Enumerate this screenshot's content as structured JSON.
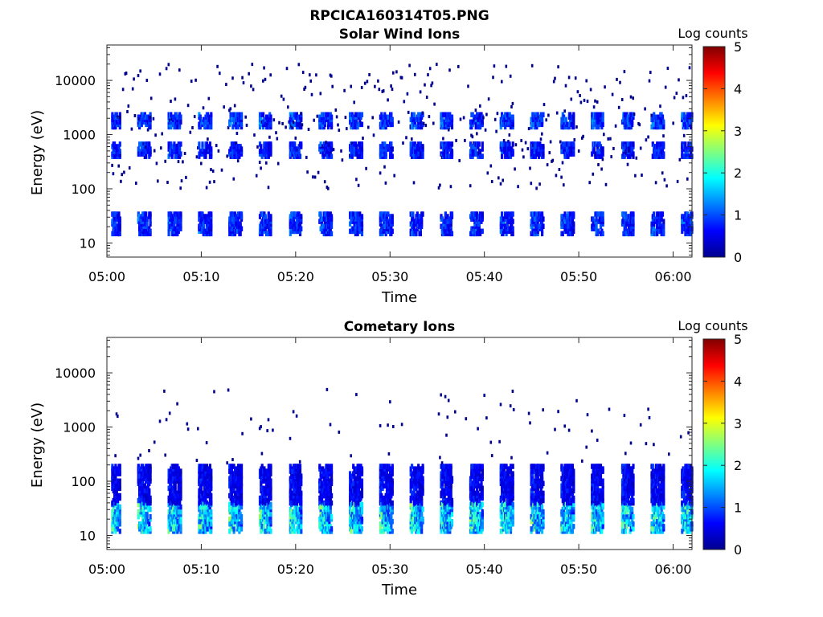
{
  "figure": {
    "filename": "RPCICA160314T05.PNG"
  },
  "colorbar_ticks": [
    "0",
    "1",
    "2",
    "3",
    "4",
    "5"
  ],
  "colors": {
    "colormap": [
      "#00008f",
      "#0000ff",
      "#0080ff",
      "#00ffff",
      "#80ff80",
      "#ffff00",
      "#ff8000",
      "#ff0000",
      "#800000"
    ]
  },
  "chart_data": [
    {
      "type": "heatmap",
      "title": "Solar Wind Ions",
      "xlabel": "Time",
      "ylabel": "Energy (eV)",
      "colorbar_label": "Log counts",
      "clim": [
        0,
        5
      ],
      "yscale": "log",
      "ylim": [
        5.5,
        45000
      ],
      "xlim": [
        "05:00",
        "06:02"
      ],
      "x_ticks": [
        "05:00",
        "05:10",
        "05:20",
        "05:30",
        "05:40",
        "05:50",
        "06:00"
      ],
      "y_ticks": [
        "10",
        "100",
        "1000",
        "10000"
      ],
      "sweep_period_min": 3.2,
      "bands": [
        {
          "energy_range_eV": [
            1400,
            2400
          ],
          "peak_log_counts": 1.5
        },
        {
          "energy_range_eV": [
            400,
            700
          ],
          "peak_log_counts": 1.3
        },
        {
          "energy_range_eV": [
            15,
            35
          ],
          "peak_log_counts": 1.4
        }
      ],
      "sparse_counts_range_eV": [
        100,
        20000
      ]
    },
    {
      "type": "heatmap",
      "title": "Cometary Ions",
      "xlabel": "Time",
      "ylabel": "Energy (eV)",
      "colorbar_label": "Log counts",
      "clim": [
        0,
        5
      ],
      "yscale": "log",
      "ylim": [
        5.5,
        45000
      ],
      "xlim": [
        "05:00",
        "06:02"
      ],
      "x_ticks": [
        "05:00",
        "05:10",
        "05:20",
        "05:30",
        "05:40",
        "05:50",
        "06:00"
      ],
      "y_ticks": [
        "10",
        "100",
        "1000",
        "10000"
      ],
      "sweep_period_min": 3.2,
      "bands": [
        {
          "energy_range_eV": [
            12,
            40
          ],
          "peak_log_counts": 2.8
        },
        {
          "energy_range_eV": [
            40,
            200
          ],
          "peak_log_counts": 1.0
        }
      ],
      "sparse_counts_range_eV": [
        200,
        5000
      ]
    }
  ]
}
